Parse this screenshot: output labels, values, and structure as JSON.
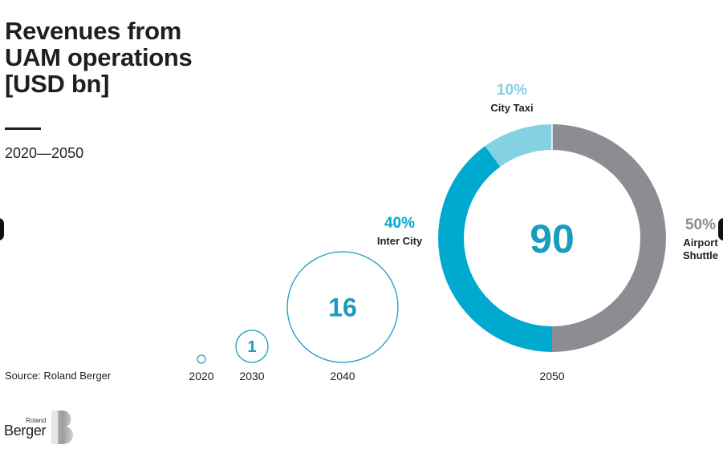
{
  "title_lines": [
    "Revenues from",
    "UAM operations",
    "[USD bn]"
  ],
  "subtitle": "2020—2050",
  "source": "Source: Roland Berger",
  "logo": {
    "small": "Roland",
    "big": "Berger"
  },
  "colors": {
    "teal": "#1a9cbf",
    "inter_city": "#00a9d0",
    "city_taxi": "#85d1e4",
    "airport_shuttle": "#8b8d92",
    "text": "#1f1f1f"
  },
  "chart_data": {
    "type": "bubble-donut",
    "title": "Revenues from UAM operations [USD bn]",
    "subtitle": "2020—2050",
    "unit": "USD bn",
    "bubbles": [
      {
        "year": "2020",
        "value": null,
        "label": ""
      },
      {
        "year": "2030",
        "value": 1,
        "label": "1"
      },
      {
        "year": "2040",
        "value": 16,
        "label": "16"
      },
      {
        "year": "2050",
        "value": 90,
        "label": "90"
      }
    ],
    "donut": {
      "year": "2050",
      "total": 90,
      "segments": [
        {
          "name": "City Taxi",
          "percent": 10,
          "label": "10%"
        },
        {
          "name": "Airport Shuttle",
          "percent": 50,
          "label": "50%",
          "name_lines": [
            "Airport",
            "Shuttle"
          ]
        },
        {
          "name": "Inter City",
          "percent": 40,
          "label": "40%"
        }
      ]
    }
  }
}
